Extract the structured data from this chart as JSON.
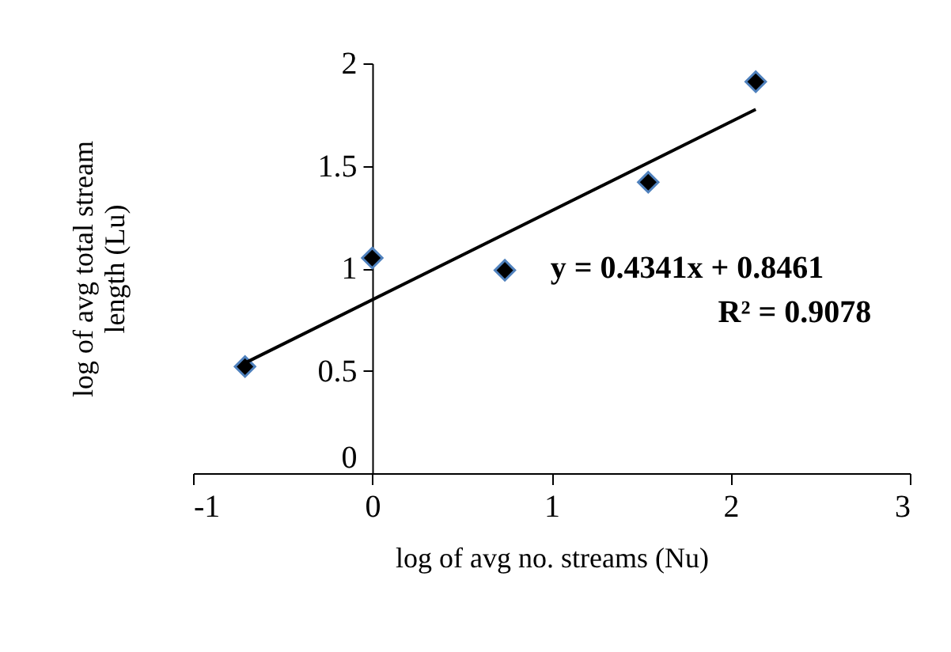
{
  "chart_data": {
    "type": "scatter",
    "xlabel": "log of avg no. streams (Nu)",
    "ylabel": "log of avg total stream length (Lu)",
    "xlim": [
      -1,
      3
    ],
    "xticks": [
      -1,
      0,
      1,
      2,
      3
    ],
    "ylim": [
      0,
      2
    ],
    "yticks": [
      0,
      0.5,
      1,
      1.5,
      2
    ],
    "grid": false,
    "marker": "diamond",
    "annotations": [
      "y = 0.4341x + 0.8461",
      "R² = 0.9078"
    ],
    "series": [
      {
        "color": "#000000",
        "x": [
          -0.71,
          0,
          0.74,
          1.54,
          2.14
        ],
        "values": [
          0.52,
          1.05,
          0.99,
          1.42,
          1.91
        ]
      },
      {
        "type": "line",
        "marker": "none",
        "color": "#000000",
        "x": [
          -0.7,
          2.14
        ],
        "values": [
          0.542,
          1.775
        ]
      }
    ]
  }
}
